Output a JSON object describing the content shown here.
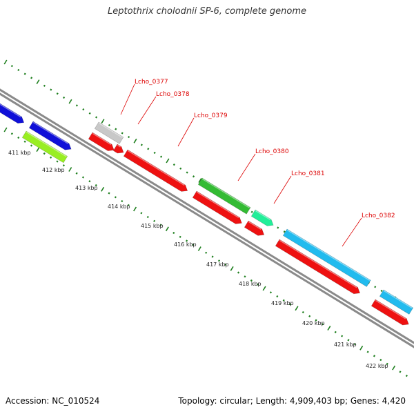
{
  "title": "Leptothrix cholodnii SP-6, complete genome",
  "footer": {
    "accession": "Accession: NC_010524",
    "summary": "Topology: circular; Length: 4,909,403 bp; Genes: 4,420"
  },
  "colors": {
    "backbone": "#8a8a8a",
    "ticks": "#1e7f1e",
    "label": "#dd0000"
  },
  "ticks": [
    {
      "label": "411 kbp"
    },
    {
      "label": "412 kbp"
    },
    {
      "label": "413 kbp"
    },
    {
      "label": "414 kbp"
    },
    {
      "label": "415 kbp"
    },
    {
      "label": "416 kbp"
    },
    {
      "label": "417 kbp"
    },
    {
      "label": "418 kbp"
    },
    {
      "label": "419 kbp"
    },
    {
      "label": "420 kbp"
    },
    {
      "label": "421 kbp"
    },
    {
      "label": "422 kbp"
    }
  ],
  "gene_labels": [
    {
      "name": "Lcho_0377"
    },
    {
      "name": "Lcho_0378"
    },
    {
      "name": "Lcho_0379"
    },
    {
      "name": "Lcho_0380"
    },
    {
      "name": "Lcho_0381"
    },
    {
      "name": "Lcho_0382"
    }
  ],
  "features": [
    {
      "id": "feat-blue-1",
      "color": "#1010d8",
      "strand": "+"
    },
    {
      "id": "feat-blue-2",
      "color": "#1010d8",
      "strand": "+"
    },
    {
      "id": "feat-green-1",
      "color": "#99ee22",
      "strand": "-"
    },
    {
      "id": "feat-gray-1",
      "color": "#c8c8c8",
      "strand": "+"
    },
    {
      "id": "feat-red-1",
      "color": "#ee1111",
      "strand": "+"
    },
    {
      "id": "feat-red-2",
      "color": "#ee1111",
      "strand": "+"
    },
    {
      "id": "feat-red-3",
      "color": "#ee1111",
      "strand": "+"
    },
    {
      "id": "feat-red-4",
      "color": "#ee1111",
      "strand": "+"
    },
    {
      "id": "feat-red-5",
      "color": "#ee1111",
      "strand": "+"
    },
    {
      "id": "feat-green-2",
      "color": "#33bb33",
      "strand": "+"
    },
    {
      "id": "feat-teal-1",
      "color": "#22ee99",
      "strand": "+"
    },
    {
      "id": "feat-cyan-1",
      "color": "#22bbee",
      "strand": "+"
    },
    {
      "id": "feat-cyan-2",
      "color": "#22bbee",
      "strand": "+"
    },
    {
      "id": "feat-red-6",
      "color": "#ee1111",
      "strand": "+"
    },
    {
      "id": "feat-red-7",
      "color": "#ee1111",
      "strand": "+"
    }
  ]
}
